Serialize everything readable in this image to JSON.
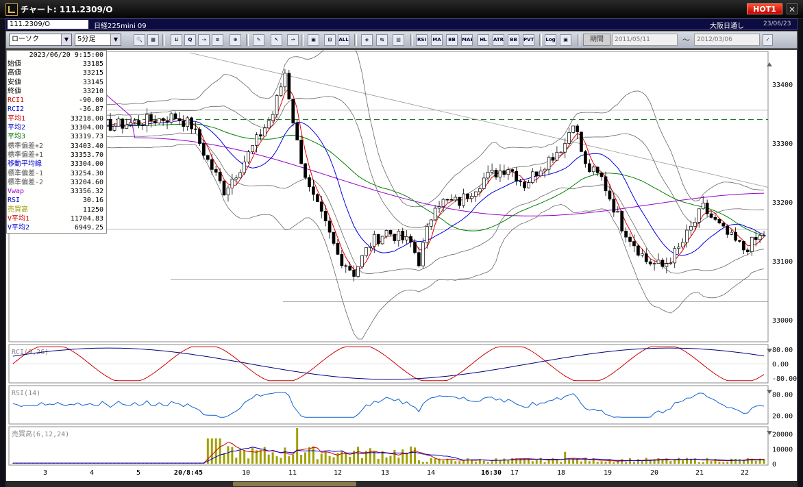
{
  "window": {
    "title": "チャート: 111.2309/O",
    "hot_label": "HOT1",
    "close_glyph": "✕"
  },
  "info": {
    "symbol_code": "111.2309/O",
    "symbol_name": "日経225mini 09",
    "market": "大阪日通し",
    "date": "23/06/23"
  },
  "toolbar": {
    "chart_type": "ローソク",
    "interval": "5分足",
    "buttons": [
      "🔍",
      "▦",
      "⇊",
      "Q",
      "⇢",
      "≡",
      "⊕",
      "✎",
      "↖",
      "⇀",
      "▣",
      "⊡",
      "ALL",
      "◈",
      "⇆",
      "▥",
      "RSI",
      "MA",
      "BB",
      "MAE",
      "HL",
      "ATR",
      "BB",
      "PVT",
      "Log",
      "▣"
    ],
    "period_label": "期間",
    "date_from": "2011/05/11",
    "date_to": "2012/03/06",
    "tilde": "～"
  },
  "panel": {
    "timestamp": "2023/06/20 9:15:00",
    "rows": [
      {
        "label": "始値",
        "value": "33185",
        "color": "#000000"
      },
      {
        "label": "高値",
        "value": "33215",
        "color": "#000000"
      },
      {
        "label": "安値",
        "value": "33145",
        "color": "#000000"
      },
      {
        "label": "終値",
        "value": "33210",
        "color": "#000000"
      },
      {
        "label": "RCI1",
        "value": "-90.00",
        "color": "#cc0000"
      },
      {
        "label": "RCI2",
        "value": "-36.87",
        "color": "#0000cc"
      },
      {
        "label": "平均1",
        "value": "33218.00",
        "color": "#cc0000"
      },
      {
        "label": "平均2",
        "value": "33304.00",
        "color": "#0000cc"
      },
      {
        "label": "平均3",
        "value": "33319.73",
        "color": "#007700"
      },
      {
        "label": "標準偏差+2",
        "value": "33403.40",
        "color": "#555555"
      },
      {
        "label": "標準偏差+1",
        "value": "33353.70",
        "color": "#555555"
      },
      {
        "label": "移動平均線",
        "value": "33304.00",
        "color": "#0000cc"
      },
      {
        "label": "標準偏差-1",
        "value": "33254.30",
        "color": "#555555"
      },
      {
        "label": "標準偏差-2",
        "value": "33204.60",
        "color": "#555555"
      },
      {
        "label": "Vwap",
        "value": "33356.32",
        "color": "#9900cc"
      },
      {
        "label": "RSI",
        "value": "30.16",
        "color": "#0000cc"
      },
      {
        "label": "売買高",
        "value": "11250",
        "color": "#999900"
      },
      {
        "label": "V平均1",
        "value": "11704.83",
        "color": "#cc0000"
      },
      {
        "label": "V平均2",
        "value": "6949.25",
        "color": "#0000cc"
      }
    ]
  },
  "price_axis": {
    "labels": [
      "33400",
      "33300",
      "33200",
      "33100",
      "33000"
    ]
  },
  "rci_panel": {
    "label": "RCI(9,26)",
    "axis": [
      "80.00",
      "0.00",
      "-80.00"
    ]
  },
  "rsi_panel": {
    "label": "RSI(14)",
    "axis": [
      "80.00",
      "20.00"
    ]
  },
  "vol_panel": {
    "label": "売買高(6,12,24)",
    "axis": [
      "20000",
      "10000",
      "0"
    ]
  },
  "x_axis": {
    "labels": [
      "3",
      "4",
      "5",
      "20/8:45",
      "10",
      "11",
      "12",
      "13",
      "14",
      "16:30",
      "17",
      "18",
      "19",
      "20",
      "21",
      "22"
    ]
  },
  "colors": {
    "up": "#ffffff",
    "down": "#000000",
    "ma1": "#e00000",
    "ma2": "#0000e0",
    "ma3": "#008000",
    "vwap": "#9900cc",
    "bb": "#666666",
    "dash": "#006600",
    "volume": "#a0a000"
  }
}
